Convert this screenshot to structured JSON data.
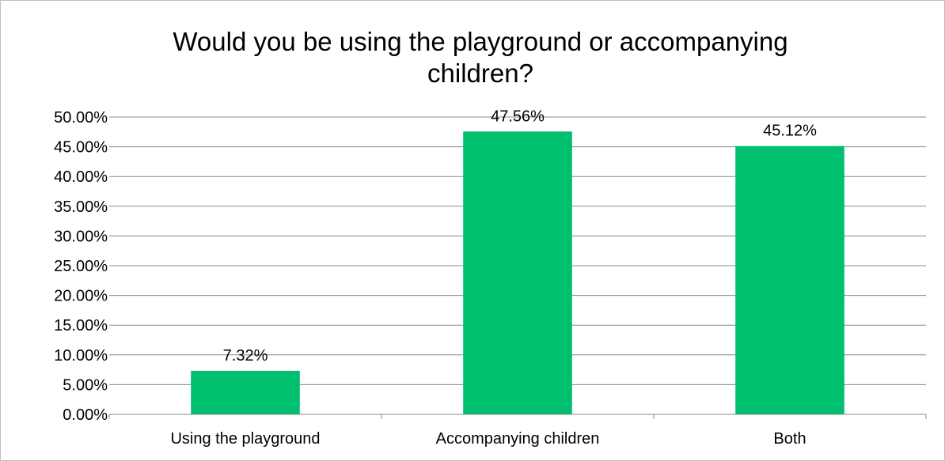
{
  "chart_data": {
    "type": "bar",
    "title_lines": [
      "Would you be using the playground or accompanying",
      "children?"
    ],
    "categories": [
      "Using the playground",
      "Accompanying children",
      "Both"
    ],
    "values": [
      7.32,
      47.56,
      45.12
    ],
    "data_labels": [
      "7.32%",
      "47.56%",
      "45.12%"
    ],
    "ylim": [
      0,
      50
    ],
    "y_ticks": [
      0,
      5,
      10,
      15,
      20,
      25,
      30,
      35,
      40,
      45,
      50
    ],
    "y_tick_labels": [
      "0.00%",
      "5.00%",
      "10.00%",
      "15.00%",
      "20.00%",
      "25.00%",
      "30.00%",
      "35.00%",
      "40.00%",
      "45.00%",
      "50.00%"
    ],
    "grid": true,
    "legend": "none",
    "bar_color": "#00c070"
  }
}
